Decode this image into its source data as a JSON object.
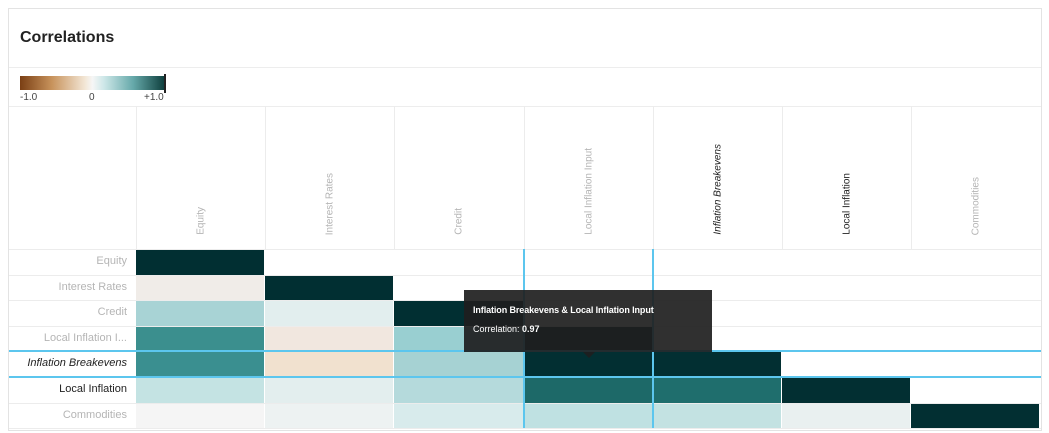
{
  "panel": {
    "title": "Correlations"
  },
  "legend": {
    "min_label": "-1.0",
    "mid_label": "0",
    "max_label": "+1.0"
  },
  "columns": [
    {
      "label": "Equity",
      "emphasis": "muted"
    },
    {
      "label": "Interest Rates",
      "emphasis": "muted"
    },
    {
      "label": "Credit",
      "emphasis": "muted"
    },
    {
      "label": "Local Inflation Input",
      "emphasis": "muted"
    },
    {
      "label": "Inflation Breakevens",
      "emphasis": "italic"
    },
    {
      "label": "Local Inflation",
      "emphasis": "dark"
    },
    {
      "label": "Commodities",
      "emphasis": "muted"
    }
  ],
  "rows": [
    {
      "label": "Equity",
      "emphasis": "muted"
    },
    {
      "label": "Interest Rates",
      "emphasis": "muted"
    },
    {
      "label": "Credit",
      "emphasis": "muted"
    },
    {
      "label": "Local Inflation I...",
      "emphasis": "muted"
    },
    {
      "label": "Inflation Breakevens",
      "emphasis": "italic"
    },
    {
      "label": "Local Inflation",
      "emphasis": "dark"
    },
    {
      "label": "Commodities",
      "emphasis": "muted"
    }
  ],
  "cell_colors": [
    [
      "#012f32",
      null,
      null,
      null,
      null,
      null,
      null
    ],
    [
      "#f0ece8",
      "#012f32",
      null,
      null,
      null,
      null,
      null
    ],
    [
      "#a8d3d5",
      "#e2eeee",
      "#012f32",
      null,
      null,
      null,
      null
    ],
    [
      "#3b8f8e",
      "#f1e7df",
      "#99cfd1",
      "#022f32",
      null,
      null,
      null
    ],
    [
      "#3a8f90",
      "#f1e1cf",
      "#a6d2d3",
      "#022f32",
      "#022f32",
      null,
      null
    ],
    [
      "#c4e3e3",
      "#e3eeee",
      "#b5dadc",
      "#1d6968",
      "#1f6e6d",
      "#022f32",
      null
    ],
    [
      "#f5f5f5",
      "#edf2f2",
      "#d8ebec",
      "#bfe1e2",
      "#c3e2e2",
      "#e9f0f0",
      "#022f32"
    ]
  ],
  "selection": {
    "row_index": 4,
    "col_index": 3
  },
  "tooltip": {
    "title": "Inflation Breakevens & Local Inflation Input",
    "label": "Correlation:",
    "value": "0.97"
  }
}
